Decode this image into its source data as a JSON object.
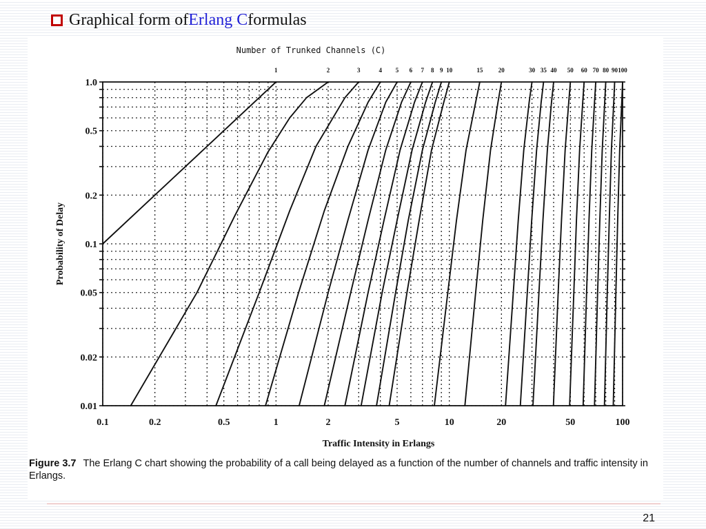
{
  "slide": {
    "title_prefix": "Graphical form of ",
    "title_accent": "Erlang C",
    "title_suffix": " formulas",
    "page_number": "21"
  },
  "colors": {
    "bullet": "#c00000",
    "accent": "#1f1fd6"
  },
  "caption": {
    "label": "Figure 3.7",
    "text": "The Erlang C chart showing the probability of a call being delayed as a function of the number of channels and traffic intensity in Erlangs."
  },
  "chart_data": {
    "type": "line",
    "title": "Number of Trunked Channels (C)",
    "xlabel": "Traffic Intensity in Erlangs",
    "ylabel": "Probability of Delay",
    "x_scale": "log",
    "y_scale": "log",
    "xlim": [
      0.1,
      100
    ],
    "ylim": [
      0.01,
      1.0
    ],
    "x_tick_labels": [
      "0.1",
      "0.2",
      "0.5",
      "1",
      "2",
      "5",
      "10",
      "20",
      "50",
      "100"
    ],
    "y_tick_labels": [
      "1.0",
      "0.5",
      "0.2",
      "0.1",
      "0.05",
      "0.02",
      "0.01"
    ],
    "channel_labels": [
      "1",
      "2",
      "3",
      "4",
      "5",
      "6",
      "7",
      "8",
      "9",
      "10",
      "15",
      "20",
      "30",
      "35",
      "40",
      "50",
      "60",
      "70",
      "80",
      "90",
      "100"
    ],
    "grid": true,
    "series": [
      {
        "name": "1",
        "points": [
          [
            0.1,
            0.1
          ],
          [
            1,
            1
          ]
        ]
      },
      {
        "name": "2",
        "points": [
          [
            0.145,
            0.01
          ],
          [
            0.35,
            0.05
          ],
          [
            0.58,
            0.15
          ],
          [
            0.9,
            0.37
          ],
          [
            1.2,
            0.6
          ],
          [
            1.5,
            0.8
          ],
          [
            2,
            1
          ]
        ]
      },
      {
        "name": "3",
        "points": [
          [
            0.45,
            0.01
          ],
          [
            0.8,
            0.05
          ],
          [
            1.2,
            0.16
          ],
          [
            1.7,
            0.4
          ],
          [
            2.5,
            0.8
          ],
          [
            3,
            1
          ]
        ]
      },
      {
        "name": "4",
        "points": [
          [
            0.87,
            0.01
          ],
          [
            1.35,
            0.05
          ],
          [
            1.9,
            0.16
          ],
          [
            2.6,
            0.4
          ],
          [
            3.4,
            0.75
          ],
          [
            4,
            1
          ]
        ]
      },
      {
        "name": "5",
        "points": [
          [
            1.36,
            0.01
          ],
          [
            2,
            0.05
          ],
          [
            2.6,
            0.14
          ],
          [
            3.4,
            0.38
          ],
          [
            4.3,
            0.75
          ],
          [
            5,
            1
          ]
        ]
      },
      {
        "name": "6",
        "points": [
          [
            1.9,
            0.01
          ],
          [
            2.7,
            0.05
          ],
          [
            3.4,
            0.14
          ],
          [
            4.3,
            0.38
          ],
          [
            5.3,
            0.75
          ],
          [
            6,
            1
          ]
        ]
      },
      {
        "name": "7",
        "points": [
          [
            2.5,
            0.01
          ],
          [
            3.4,
            0.05
          ],
          [
            4.2,
            0.14
          ],
          [
            5.2,
            0.38
          ],
          [
            6.3,
            0.75
          ],
          [
            7,
            1
          ]
        ]
      },
      {
        "name": "8",
        "points": [
          [
            3.1,
            0.01
          ],
          [
            4.1,
            0.05
          ],
          [
            5,
            0.14
          ],
          [
            6.1,
            0.38
          ],
          [
            7.3,
            0.75
          ],
          [
            8,
            1
          ]
        ]
      },
      {
        "name": "9",
        "points": [
          [
            3.8,
            0.01
          ],
          [
            4.9,
            0.05
          ],
          [
            5.8,
            0.14
          ],
          [
            7,
            0.38
          ],
          [
            8.3,
            0.75
          ],
          [
            9,
            1
          ]
        ]
      },
      {
        "name": "10",
        "points": [
          [
            4.5,
            0.01
          ],
          [
            5.7,
            0.05
          ],
          [
            6.7,
            0.14
          ],
          [
            7.9,
            0.38
          ],
          [
            9.3,
            0.75
          ],
          [
            10,
            1
          ]
        ]
      },
      {
        "name": "15",
        "points": [
          [
            8.2,
            0.01
          ],
          [
            9.8,
            0.05
          ],
          [
            11,
            0.14
          ],
          [
            12.5,
            0.38
          ],
          [
            14.2,
            0.75
          ],
          [
            15,
            1
          ]
        ]
      },
      {
        "name": "20",
        "points": [
          [
            12.3,
            0.01
          ],
          [
            14.2,
            0.05
          ],
          [
            15.6,
            0.14
          ],
          [
            17.3,
            0.38
          ],
          [
            19.1,
            0.75
          ],
          [
            20,
            1
          ]
        ]
      },
      {
        "name": "30",
        "points": [
          [
            21.1,
            0.01
          ],
          [
            23.4,
            0.05
          ],
          [
            25,
            0.14
          ],
          [
            26.9,
            0.38
          ],
          [
            28.9,
            0.75
          ],
          [
            30,
            1
          ]
        ]
      },
      {
        "name": "35",
        "points": [
          [
            25.7,
            0.01
          ],
          [
            28.2,
            0.05
          ],
          [
            29.9,
            0.14
          ],
          [
            31.9,
            0.38
          ],
          [
            33.9,
            0.75
          ],
          [
            35,
            1
          ]
        ]
      },
      {
        "name": "40",
        "points": [
          [
            30.4,
            0.01
          ],
          [
            32.9,
            0.05
          ],
          [
            34.7,
            0.14
          ],
          [
            36.8,
            0.38
          ],
          [
            38.9,
            0.75
          ],
          [
            40,
            1
          ]
        ]
      },
      {
        "name": "50",
        "points": [
          [
            39.9,
            0.01
          ],
          [
            42.5,
            0.05
          ],
          [
            44.4,
            0.14
          ],
          [
            46.6,
            0.38
          ],
          [
            48.9,
            0.75
          ],
          [
            50,
            1
          ]
        ]
      },
      {
        "name": "60",
        "points": [
          [
            49.5,
            0.01
          ],
          [
            52.3,
            0.05
          ],
          [
            54.2,
            0.14
          ],
          [
            56.5,
            0.38
          ],
          [
            58.9,
            0.75
          ],
          [
            60,
            1
          ]
        ]
      },
      {
        "name": "70",
        "points": [
          [
            59.2,
            0.01
          ],
          [
            62,
            0.05
          ],
          [
            64,
            0.14
          ],
          [
            66.4,
            0.38
          ],
          [
            68.9,
            0.75
          ],
          [
            70,
            1
          ]
        ]
      },
      {
        "name": "80",
        "points": [
          [
            68.9,
            0.01
          ],
          [
            71.8,
            0.05
          ],
          [
            73.9,
            0.14
          ],
          [
            76.3,
            0.38
          ],
          [
            78.9,
            0.75
          ],
          [
            80,
            1
          ]
        ]
      },
      {
        "name": "90",
        "points": [
          [
            78.6,
            0.01
          ],
          [
            81.6,
            0.05
          ],
          [
            83.8,
            0.14
          ],
          [
            86.2,
            0.38
          ],
          [
            88.9,
            0.75
          ],
          [
            90,
            1
          ]
        ]
      },
      {
        "name": "100",
        "points": [
          [
            88.4,
            0.01
          ],
          [
            91.5,
            0.05
          ],
          [
            93.7,
            0.14
          ],
          [
            96.2,
            0.38
          ],
          [
            98.9,
            0.75
          ],
          [
            100,
            1
          ]
        ]
      }
    ]
  }
}
